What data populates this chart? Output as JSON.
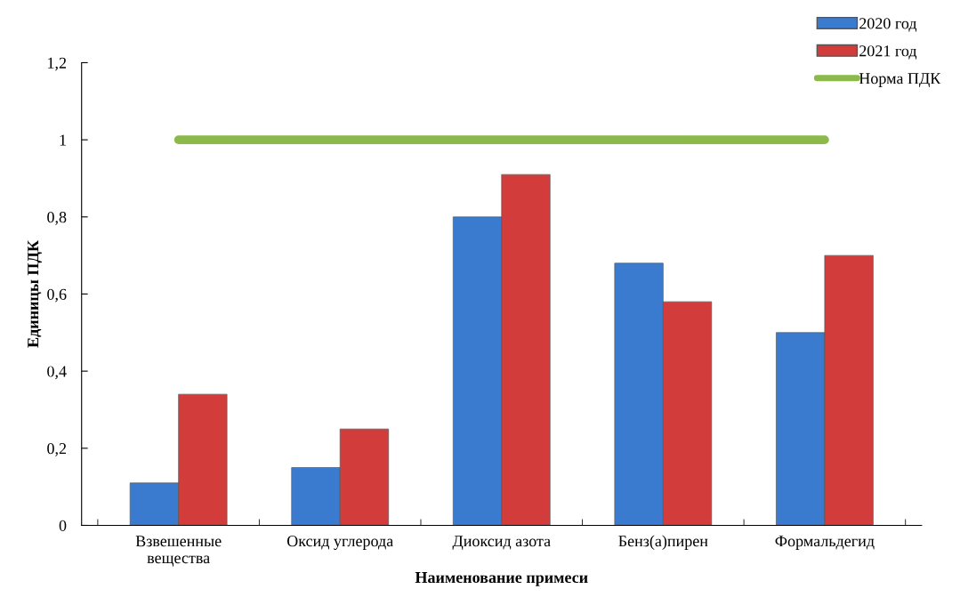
{
  "chart_data": {
    "type": "bar",
    "xlabel": "Наименование примеси",
    "ylabel": "Единицы ПДК",
    "categories": [
      "Взвешенные\nвещества",
      "Оксид углерода",
      "Диоксид азота",
      "Бенз(а)пирен",
      "Формальдегид"
    ],
    "series": [
      {
        "name": "2020 год",
        "color": "#3a7bd0",
        "values": [
          0.11,
          0.15,
          0.8,
          0.68,
          0.5
        ]
      },
      {
        "name": "2021 год",
        "color": "#d23d3b",
        "values": [
          0.34,
          0.25,
          0.91,
          0.58,
          0.7
        ]
      },
      {
        "name": "Норма ПДК",
        "type": "line",
        "color": "#8cba4a",
        "values": [
          1,
          1,
          1,
          1,
          1
        ]
      }
    ],
    "ylim": [
      0,
      1.2
    ],
    "yticks": [
      0,
      {
        "value": 0.2,
        "label": "0,2"
      },
      {
        "value": 0.4,
        "label": "0,4"
      },
      {
        "value": 0.6,
        "label": "0,6"
      },
      {
        "value": 0.8,
        "label": "0,8"
      },
      1,
      {
        "value": 1.2,
        "label": "1,2"
      }
    ],
    "grid": false,
    "legend": "top right"
  }
}
